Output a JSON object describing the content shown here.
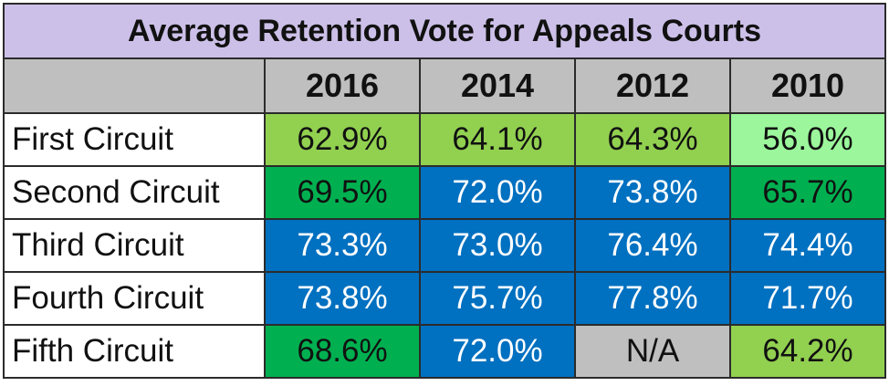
{
  "chart_data": {
    "type": "table",
    "title": "Average Retention Vote for Appeals Courts",
    "columns": [
      "2016",
      "2014",
      "2012",
      "2010"
    ],
    "rows": [
      {
        "label": "First Circuit",
        "cells": [
          {
            "text": "62.9%",
            "value": 62.9,
            "bg": "#92d050",
            "fg": "#111111"
          },
          {
            "text": "64.1%",
            "value": 64.1,
            "bg": "#92d050",
            "fg": "#111111"
          },
          {
            "text": "64.3%",
            "value": 64.3,
            "bg": "#92d050",
            "fg": "#111111"
          },
          {
            "text": "56.0%",
            "value": 56.0,
            "bg": "#9cf79c",
            "fg": "#111111"
          }
        ]
      },
      {
        "label": "Second Circuit",
        "cells": [
          {
            "text": "69.5%",
            "value": 69.5,
            "bg": "#00b050",
            "fg": "#111111"
          },
          {
            "text": "72.0%",
            "value": 72.0,
            "bg": "#0070c0",
            "fg": "#ffffff"
          },
          {
            "text": "73.8%",
            "value": 73.8,
            "bg": "#0070c0",
            "fg": "#ffffff"
          },
          {
            "text": "65.7%",
            "value": 65.7,
            "bg": "#00b050",
            "fg": "#111111"
          }
        ]
      },
      {
        "label": "Third Circuit",
        "cells": [
          {
            "text": "73.3%",
            "value": 73.3,
            "bg": "#0070c0",
            "fg": "#ffffff"
          },
          {
            "text": "73.0%",
            "value": 73.0,
            "bg": "#0070c0",
            "fg": "#ffffff"
          },
          {
            "text": "76.4%",
            "value": 76.4,
            "bg": "#0070c0",
            "fg": "#ffffff"
          },
          {
            "text": "74.4%",
            "value": 74.4,
            "bg": "#0070c0",
            "fg": "#ffffff"
          }
        ]
      },
      {
        "label": "Fourth Circuit",
        "cells": [
          {
            "text": "73.8%",
            "value": 73.8,
            "bg": "#0070c0",
            "fg": "#ffffff"
          },
          {
            "text": "75.7%",
            "value": 75.7,
            "bg": "#0070c0",
            "fg": "#ffffff"
          },
          {
            "text": "77.8%",
            "value": 77.8,
            "bg": "#0070c0",
            "fg": "#ffffff"
          },
          {
            "text": "71.7%",
            "value": 71.7,
            "bg": "#0070c0",
            "fg": "#ffffff"
          }
        ]
      },
      {
        "label": "Fifth Circuit",
        "cells": [
          {
            "text": "68.6%",
            "value": 68.6,
            "bg": "#00b050",
            "fg": "#111111"
          },
          {
            "text": "72.0%",
            "value": 72.0,
            "bg": "#0070c0",
            "fg": "#ffffff"
          },
          {
            "text": "N/A",
            "value": null,
            "bg": "#bfbfbf",
            "fg": "#111111"
          },
          {
            "text": "64.2%",
            "value": 64.2,
            "bg": "#92d050",
            "fg": "#111111"
          }
        ]
      }
    ]
  }
}
